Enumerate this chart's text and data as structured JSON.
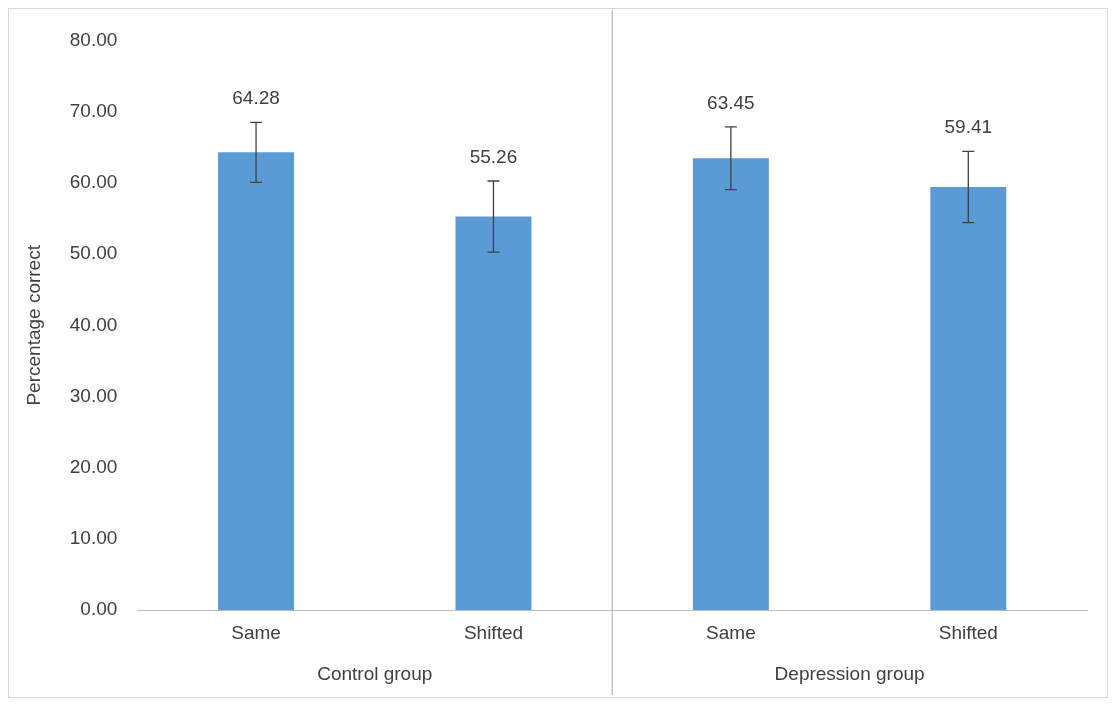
{
  "chart_data": {
    "type": "bar",
    "ylabel": "Percentage correct",
    "categories": [
      "Same",
      "Shifted",
      "Same",
      "Shifted"
    ],
    "values": [
      64.28,
      55.26,
      63.45,
      59.41
    ],
    "errors": [
      4.2,
      5.0,
      4.4,
      5.0
    ],
    "color": "#5b9bd5",
    "data_labels": true,
    "ylim": [
      0,
      80
    ],
    "yticks": [
      {
        "value": 0,
        "label": "0.00"
      },
      {
        "value": 10,
        "label": "10.00"
      },
      {
        "value": 20,
        "label": "20.00"
      },
      {
        "value": 30,
        "label": "30.00"
      },
      {
        "value": 40,
        "label": "40.00"
      },
      {
        "value": 50,
        "label": "50.00"
      },
      {
        "value": 60,
        "label": "60.00"
      },
      {
        "value": 70,
        "label": "70.00"
      },
      {
        "value": 80,
        "label": "80.00"
      }
    ],
    "annotations": [
      "Control group",
      "Depression group"
    ],
    "grid": false,
    "legend": false
  }
}
